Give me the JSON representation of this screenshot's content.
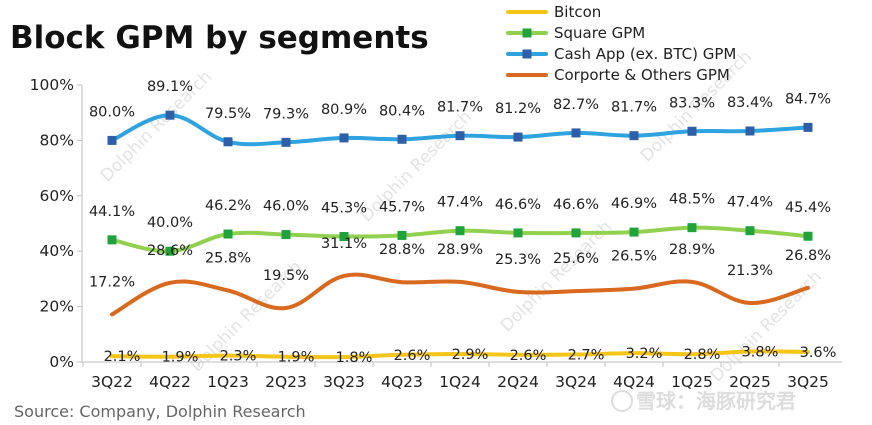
{
  "title": "Block GPM by segments",
  "source": "Source: Company, Dolphin Research",
  "watermark": "Dolphin Research",
  "logo_text": "雪球：海豚研究君",
  "colors": {
    "bitcoin": "#f5c518",
    "square": "#92d050",
    "cashapp": "#2ea3e0",
    "corporate": "#d9691f",
    "square_marker": "#1fa33a",
    "cashapp_marker": "#2e5fa8"
  },
  "chart_data": {
    "type": "line",
    "title": "Block GPM by segments",
    "categories": [
      "3Q22",
      "4Q22",
      "1Q23",
      "2Q23",
      "3Q23",
      "4Q23",
      "1Q24",
      "2Q24",
      "3Q24",
      "4Q24",
      "1Q25",
      "2Q25",
      "3Q25"
    ],
    "y_ticks": [
      "0%",
      "20%",
      "40%",
      "60%",
      "80%",
      "100%"
    ],
    "ylim": [
      0,
      100
    ],
    "legend_position": "top-right",
    "grid": false,
    "series": [
      {
        "key": "bitcoin",
        "name": "Bitcon",
        "marker": "none",
        "values": [
          2.1,
          1.9,
          2.3,
          1.9,
          1.8,
          2.6,
          2.9,
          2.6,
          2.7,
          3.2,
          2.8,
          3.8,
          3.6
        ],
        "labels": [
          "2.1%",
          "1.9%",
          "2.3%",
          "1.9%",
          "1.8%",
          "2.6%",
          "2.9%",
          "2.6%",
          "2.7%",
          "3.2%",
          "2.8%",
          "3.8%",
          "3.6%"
        ]
      },
      {
        "key": "square",
        "name": "Square GPM",
        "marker": "square",
        "values": [
          44.1,
          40.0,
          46.2,
          46.0,
          45.3,
          45.7,
          47.4,
          46.6,
          46.6,
          46.9,
          48.5,
          47.4,
          45.4
        ],
        "labels": [
          "44.1%",
          "40.0%",
          "46.2%",
          "46.0%",
          "45.3%",
          "45.7%",
          "47.4%",
          "46.6%",
          "46.6%",
          "46.9%",
          "48.5%",
          "47.4%",
          "45.4%"
        ]
      },
      {
        "key": "cashapp",
        "name": "Cash App (ex. BTC) GPM",
        "marker": "square",
        "values": [
          80.0,
          89.1,
          79.5,
          79.3,
          80.9,
          80.4,
          81.7,
          81.2,
          82.7,
          81.7,
          83.3,
          83.4,
          84.7
        ],
        "labels": [
          "80.0%",
          "89.1%",
          "79.5%",
          "79.3%",
          "80.9%",
          "80.4%",
          "81.7%",
          "81.2%",
          "82.7%",
          "81.7%",
          "83.3%",
          "83.4%",
          "84.7%"
        ]
      },
      {
        "key": "corporate",
        "name": "Corporte & Others GPM",
        "marker": "none",
        "values": [
          17.2,
          28.6,
          25.8,
          19.5,
          31.1,
          28.8,
          28.9,
          25.3,
          25.6,
          26.5,
          28.9,
          21.3,
          26.8
        ],
        "labels": [
          "17.2%",
          "28.6%",
          "25.8%",
          "19.5%",
          "31.1%",
          "28.8%",
          "28.9%",
          "25.3%",
          "25.6%",
          "26.5%",
          "28.9%",
          "21.3%",
          "26.8%"
        ]
      }
    ]
  }
}
